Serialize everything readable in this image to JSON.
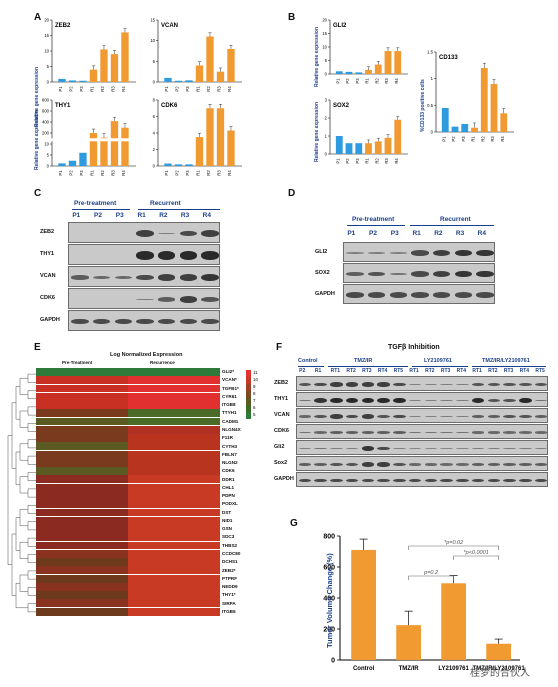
{
  "colors": {
    "blue": "#2e9be0",
    "orange": "#f29a32",
    "blue_label": "#1a3f8a",
    "heat_high": "#e23232",
    "heat_low": "#2e7a3a"
  },
  "panelA": {
    "letter": "A",
    "ylabel": "Relative gene expression",
    "categories": [
      "P1",
      "P2",
      "P3",
      "R1",
      "R2",
      "R3",
      "R4"
    ],
    "charts": [
      {
        "gene": "ZEB2",
        "yticks": [
          "0",
          "5",
          "10",
          "15",
          "20"
        ]
      },
      {
        "gene": "VCAN",
        "yticks": [
          "0",
          "5",
          "10",
          "15"
        ]
      },
      {
        "gene": "THY1",
        "yticks": [
          "0",
          "5",
          "10",
          "200",
          "400",
          "600",
          "800"
        ]
      },
      {
        "gene": "CDK6",
        "yticks": [
          "0",
          "2",
          "4",
          "6",
          "8"
        ]
      }
    ]
  },
  "panelB": {
    "letter": "B",
    "ylabel": "Relative gene expression",
    "ylabel2": "%CD133 positive cells",
    "charts": [
      {
        "gene": "GLI2",
        "yticks": [
          "0",
          "5",
          "10",
          "15",
          "20"
        ]
      },
      {
        "gene": "SOX2",
        "yticks": [
          "0",
          "1",
          "2",
          "3"
        ]
      },
      {
        "gene": "CD133",
        "yticks": [
          "0",
          "0.5",
          "1",
          "1.5"
        ]
      }
    ]
  },
  "chart_data": [
    {
      "type": "bar",
      "title": "ZEB2",
      "categories": [
        "P1",
        "P2",
        "P3",
        "R1",
        "R2",
        "R3",
        "R4"
      ],
      "values": [
        1,
        0.5,
        0.4,
        4,
        10.5,
        9,
        16
      ],
      "ylim": [
        0,
        20
      ]
    },
    {
      "type": "bar",
      "title": "VCAN",
      "categories": [
        "P1",
        "P2",
        "P3",
        "R1",
        "R2",
        "R3",
        "R4"
      ],
      "values": [
        1,
        0.3,
        0.4,
        4,
        11,
        2.5,
        8
      ],
      "ylim": [
        0,
        15
      ]
    },
    {
      "type": "bar",
      "title": "THY1",
      "categories": [
        "P1",
        "P2",
        "P3",
        "R1",
        "R2",
        "R3",
        "R4"
      ],
      "values": [
        1,
        2,
        5,
        300,
        230,
        480,
        380
      ],
      "ylim": [
        0,
        800
      ]
    },
    {
      "type": "bar",
      "title": "CDK6",
      "categories": [
        "P1",
        "P2",
        "P3",
        "R1",
        "R2",
        "R3",
        "R4"
      ],
      "values": [
        0.3,
        0.2,
        0.2,
        3.5,
        7,
        7,
        4.3
      ],
      "ylim": [
        0,
        8
      ]
    },
    {
      "type": "bar",
      "title": "GLI2",
      "categories": [
        "P1",
        "P2",
        "P3",
        "R1",
        "R2",
        "R3",
        "R4"
      ],
      "values": [
        1,
        0.8,
        0.6,
        1.5,
        3.5,
        8.5,
        8.5
      ],
      "ylim": [
        0,
        20
      ]
    },
    {
      "type": "bar",
      "title": "SOX2",
      "categories": [
        "P1",
        "P2",
        "P3",
        "R1",
        "R2",
        "R3",
        "R4"
      ],
      "values": [
        1,
        0.6,
        0.6,
        0.6,
        0.7,
        0.9,
        1.9
      ],
      "ylim": [
        0,
        3
      ]
    },
    {
      "type": "bar",
      "title": "CD133",
      "categories": [
        "P1",
        "P2",
        "P3",
        "R1",
        "R2",
        "R3",
        "R4"
      ],
      "values": [
        0.45,
        0.1,
        0.15,
        0.08,
        1.2,
        0.9,
        0.35
      ],
      "ylim": [
        0,
        1.5
      ]
    },
    {
      "type": "bar",
      "title": "",
      "ylabel": "Tumor Volume Change (%)",
      "categories": [
        "Control",
        "TMZ/IR",
        "LY2109761",
        "TMZ/IR/LY2109761"
      ],
      "values": [
        710,
        225,
        495,
        105
      ],
      "ylim": [
        0,
        800
      ],
      "annotations": [
        "*p=0.02",
        "*p<0.0001",
        "p=0.2"
      ]
    }
  ],
  "panelC": {
    "letter": "C",
    "groups": [
      "Pre-treatment",
      "Recurrent"
    ],
    "lanes": [
      "P1",
      "P2",
      "P3",
      "R1",
      "R2",
      "R3",
      "R4"
    ],
    "rows": [
      "ZEB2",
      "THY1",
      "VCAN",
      "CDK6",
      "GAPDH"
    ]
  },
  "panelD": {
    "letter": "D",
    "groups": [
      "Pre-treatment",
      "Recurrent"
    ],
    "lanes": [
      "P1",
      "P2",
      "P3",
      "R1",
      "R2",
      "R3",
      "R4"
    ],
    "rows": [
      "GLI2",
      "SOX2",
      "GAPDH"
    ]
  },
  "panelE": {
    "letter": "E",
    "title": "Log Normalized Expression",
    "col_pre": "Pre-Treatment",
    "col_rec": "Recurrence",
    "genes": [
      "GLI2*",
      "VCAN*",
      "TGFB1*",
      "CYR61",
      "ITGB8",
      "TTYH1",
      "CADM1",
      "NLGN4X",
      "F11R",
      "CYTH3",
      "FBLN7",
      "NLGN2",
      "CDK6",
      "DDR1",
      "CHL1",
      "PDPN",
      "PODXL",
      "DST",
      "NID1",
      "GSN",
      "SDC3",
      "THBS2",
      "CCDC80",
      "DCHS1",
      "ZEB2*",
      "PTPRF",
      "NEDD9",
      "THY1*",
      "SIRPA",
      "ITGB5"
    ],
    "scale": [
      "11",
      "10",
      "9",
      "8",
      "7",
      "6",
      "5"
    ]
  },
  "panelF": {
    "letter": "F",
    "title": "TGFβ Inhibition",
    "groups": [
      "Control",
      "TMZ/IR",
      "LY2109761",
      "TMZ/IR/LY2109761"
    ],
    "lanes": [
      "P2",
      "R1",
      "RT1",
      "RT2",
      "RT3",
      "RT4",
      "RT5",
      "RT1",
      "RT2",
      "RT3",
      "RT4",
      "RT1",
      "RT2",
      "RT3",
      "RT4",
      "RT5"
    ],
    "rows": [
      "ZEB2",
      "THY1",
      "VCAN",
      "CDK6",
      "Gli2",
      "Sox2",
      "GAPDH"
    ]
  },
  "panelG": {
    "letter": "G",
    "ylabel": "Tumor Volume Change (%)",
    "yticks": [
      "0",
      "200",
      "400",
      "600",
      "800"
    ],
    "xlabels": [
      "Control",
      "TMZ/IR",
      "LY2109761",
      "TMZ/IR/LY2109761"
    ]
  },
  "watermark": "桂梦的合伙人"
}
